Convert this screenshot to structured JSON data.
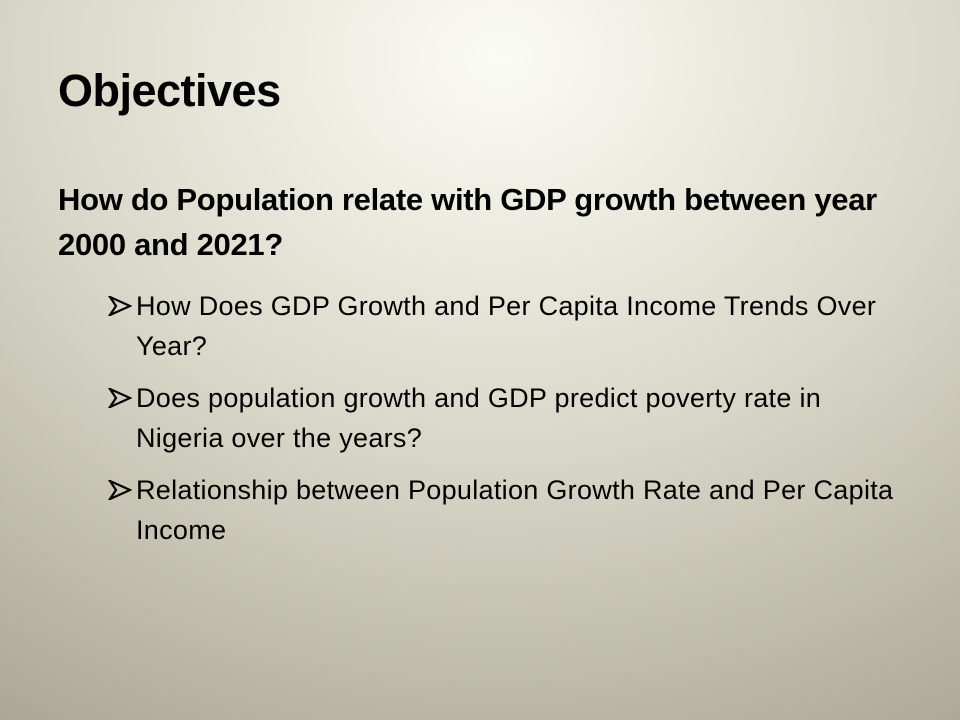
{
  "slide": {
    "title": "Objectives",
    "question": "How do Population relate with GDP growth between year 2000 and 2021?",
    "bullets": [
      {
        "icon": "arrowhead-bullet-icon",
        "text": "How Does GDP Growth and Per Capita Income Trends Over Year?"
      },
      {
        "icon": "arrowhead-bullet-icon",
        "text": "Does population growth and GDP predict poverty rate in Nigeria over the years?"
      },
      {
        "icon": "arrowhead-bullet-icon",
        "text": "Relationship between Population Growth Rate and Per Capita Income"
      }
    ]
  }
}
